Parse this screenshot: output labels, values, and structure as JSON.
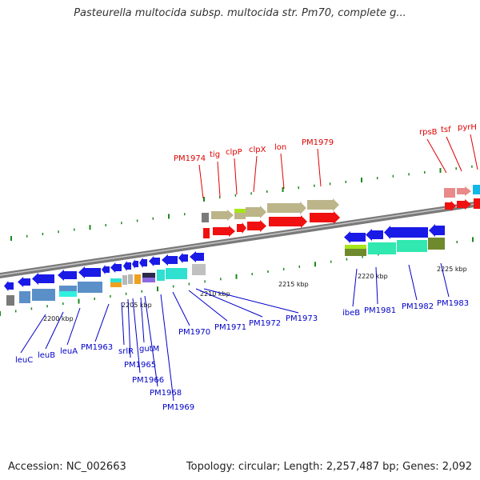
{
  "title": "Pasteurella multocida subsp. multocida str. Pm70, complete g...",
  "footer": {
    "accession": "Accession: NC_002663",
    "topology": "Topology: circular; Length: 2,257,487 bp; Genes: 2,092"
  },
  "colors": {
    "top_label": "#e00000",
    "bottom_label": "#0000c8",
    "backbone": "#808080",
    "blue_gene": "#1a1ae6",
    "red_gene": "#f01010",
    "khaki": "#bcb58a",
    "teal": "#30e0d0",
    "steel": "#5b8fc8"
  },
  "scale_ticks": [
    "2200 kbp",
    "2205 kbp",
    "2210 kbp",
    "2215 kbp",
    "2220 kbp",
    "2225 kbp"
  ],
  "top_labels": [
    "PM1974",
    "tig",
    "clpP",
    "clpX",
    "lon",
    "PM1979",
    "rpsB",
    "tsf",
    "pyrH"
  ],
  "bottom_labels": [
    "leuC",
    "leuB",
    "leuA",
    "PM1963",
    "srlR",
    "PM1965",
    "gutM",
    "PM1966",
    "PM1968",
    "PM1969",
    "PM1970",
    "PM1971",
    "PM1972",
    "PM1973",
    "ibeB",
    "PM1981",
    "PM1982",
    "PM1983"
  ]
}
